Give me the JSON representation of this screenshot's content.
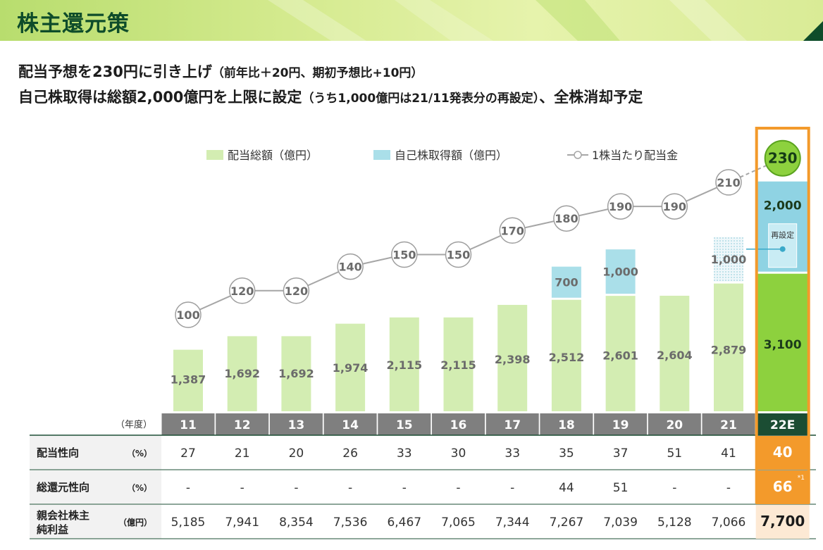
{
  "header": {
    "title": "株主還元策",
    "line1_main": "配当予想を230円に引き上げ",
    "line1_note": "（前年比＋20円、期初予想比+10円）",
    "line2_main": "自己株取得は総額2,000億円を上限に設定",
    "line2_note": "（うち1,000億円は21/11発表分の再設定）",
    "line2_tail": "、全株消却予定"
  },
  "colors": {
    "dividend_bar": "#d3edb2",
    "dividend_bar_forecast": "#8dd13e",
    "buyback_bar": "#aadfe9",
    "buyback_bar_forecast": "#8fd3e3",
    "line": "#a6a6a6",
    "axis_bg": "#7f7f7f",
    "forecast_axis_bg": "#1b4d33",
    "highlight": "#f39a2b",
    "title_green": "#0e4c2a"
  },
  "chart_data": {
    "type": "bar",
    "x_axis_label": "（年度）",
    "categories": [
      "11",
      "12",
      "13",
      "14",
      "15",
      "16",
      "17",
      "18",
      "19",
      "20",
      "21",
      "22E"
    ],
    "legend": [
      "配当総額（億円）",
      "自己株取得額（億円）",
      "1株当たり配当金"
    ],
    "series": [
      {
        "name": "配当総額（億円）",
        "type": "bar",
        "values": [
          1387,
          1692,
          1692,
          1974,
          2115,
          2115,
          2398,
          2512,
          2601,
          2604,
          2879,
          3100
        ],
        "labels": [
          "1,387",
          "1,692",
          "1,692",
          "1,974",
          "2,115",
          "2,115",
          "2,398",
          "2,512",
          "2,601",
          "2,604",
          "2,879",
          "3,100"
        ]
      },
      {
        "name": "自己株取得額（億円）",
        "type": "bar",
        "values": [
          null,
          null,
          null,
          null,
          null,
          null,
          null,
          700,
          1000,
          null,
          1000,
          2000
        ],
        "labels": [
          "",
          "",
          "",
          "",
          "",
          "",
          "",
          "700",
          "1,000",
          "",
          "1,000",
          "2,000"
        ]
      },
      {
        "name": "1株当たり配当金",
        "type": "line",
        "values": [
          100,
          120,
          120,
          140,
          150,
          150,
          170,
          180,
          190,
          190,
          210,
          230
        ],
        "labels": [
          "100",
          "120",
          "120",
          "140",
          "150",
          "150",
          "170",
          "180",
          "190",
          "190",
          "210",
          "230"
        ]
      }
    ],
    "forecast_index": 11,
    "reset_label": "再設定"
  },
  "table": {
    "rows": [
      {
        "label": "配当性向",
        "unit": "（%）",
        "values": [
          "27",
          "21",
          "20",
          "26",
          "33",
          "30",
          "33",
          "35",
          "37",
          "51",
          "41",
          "40"
        ]
      },
      {
        "label": "総還元性向",
        "unit": "（%）",
        "values": [
          "-",
          "-",
          "-",
          "-",
          "-",
          "-",
          "-",
          "44",
          "51",
          "-",
          "-",
          "66"
        ],
        "forecast_note": "*1"
      },
      {
        "label_line1": "親会社株主",
        "label_line2": "純利益",
        "unit": "（億円）",
        "values": [
          "5,185",
          "7,941",
          "8,354",
          "7,536",
          "6,467",
          "7,065",
          "7,344",
          "7,267",
          "7,039",
          "5,128",
          "7,066",
          "7,700"
        ]
      }
    ]
  }
}
